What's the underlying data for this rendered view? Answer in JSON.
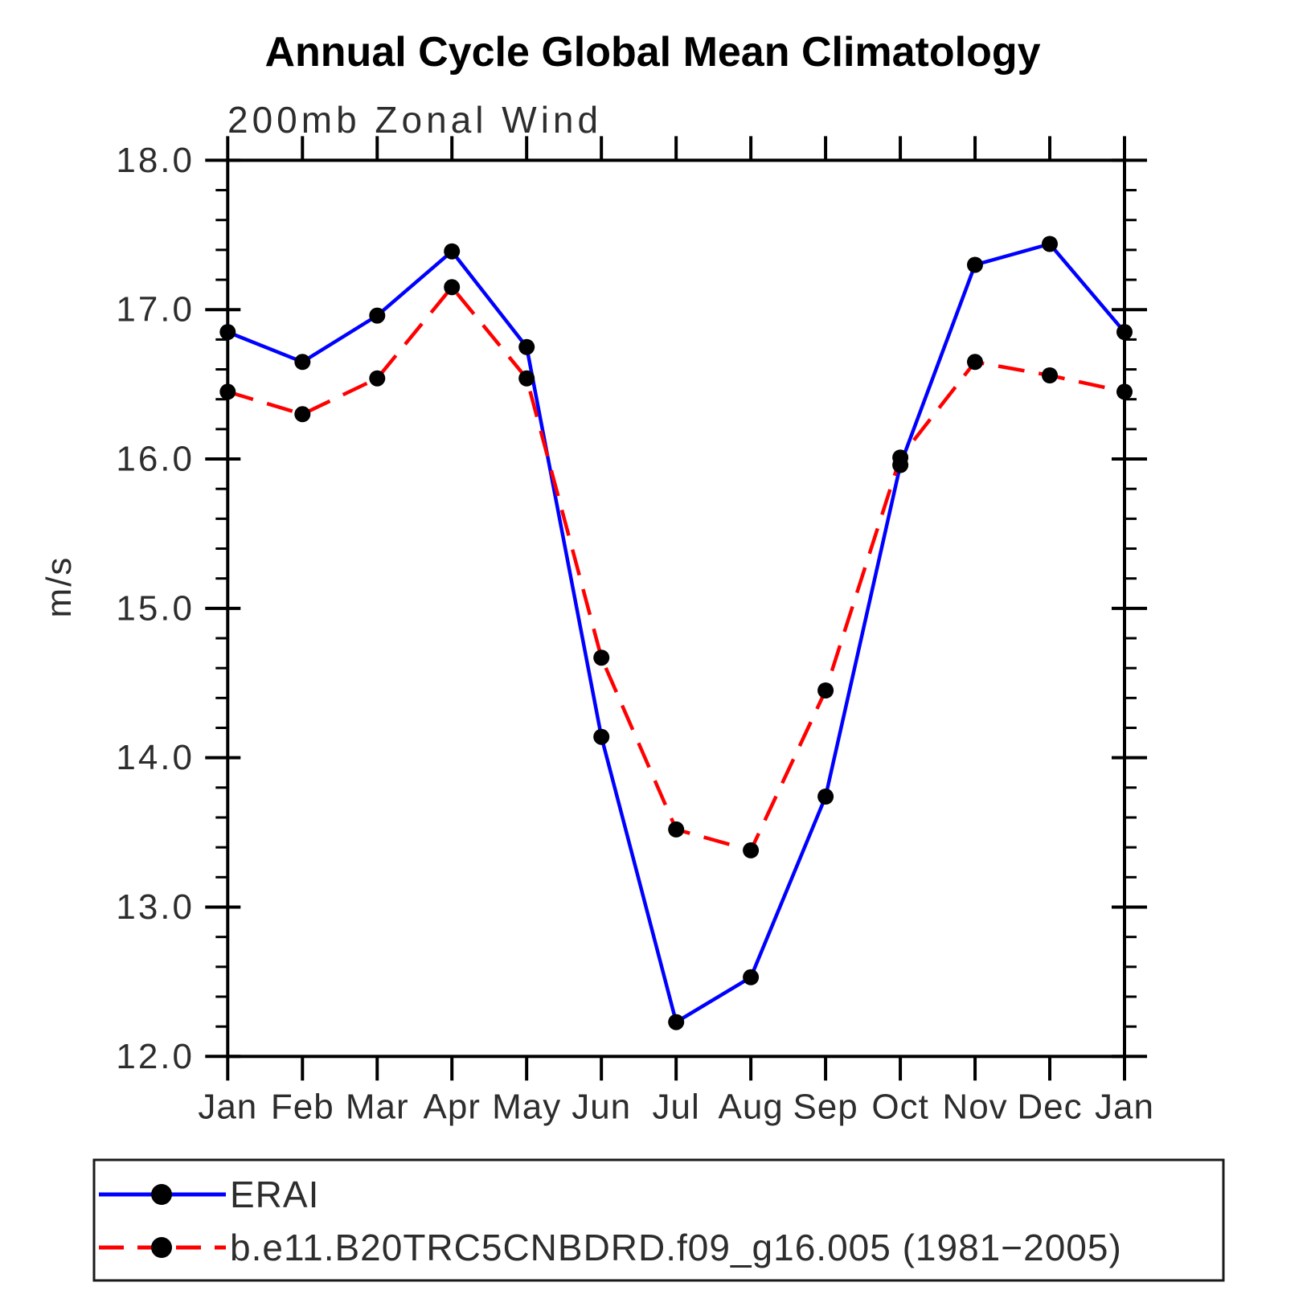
{
  "title": "Annual Cycle Global Mean Climatology",
  "subtitle": "200mb Zonal Wind",
  "chart_data": {
    "type": "line",
    "title": "Annual Cycle Global Mean Climatology",
    "subtitle": "200mb Zonal Wind",
    "xlabel": "",
    "ylabel": "m/s",
    "x_tick_labels": [
      "Jan",
      "Feb",
      "Mar",
      "Apr",
      "May",
      "Jun",
      "Jul",
      "Aug",
      "Sep",
      "Oct",
      "Nov",
      "Dec",
      "Jan"
    ],
    "y_ticks": [
      18.0,
      17.0,
      16.0,
      15.0,
      14.0,
      13.0,
      12.0
    ],
    "y_tick_labels": [
      "18.0",
      "17.0",
      "16.0",
      "15.0",
      "14.0",
      "13.0",
      "12.0"
    ],
    "ylim": [
      12.0,
      18.0
    ],
    "minor_tick_interval": 0.2,
    "grid": false,
    "legend_position": "bottom-left-box",
    "axis_color": "#000000",
    "marker_color": "#000000",
    "series": [
      {
        "name": "ERAI",
        "color": "#0000ff",
        "style": "solid",
        "marker": "circle",
        "values": [
          16.85,
          16.65,
          16.96,
          17.39,
          16.75,
          14.14,
          12.23,
          12.53,
          13.74,
          15.96,
          17.3,
          17.44,
          16.85
        ]
      },
      {
        "name": "b.e11.B20TRC5CNBDRD.f09_g16.005 (1981−2005)",
        "color": "#ff0000",
        "style": "dashed",
        "marker": "circle",
        "values": [
          16.45,
          16.3,
          16.54,
          17.15,
          16.54,
          14.67,
          13.52,
          13.38,
          14.45,
          16.01,
          16.65,
          16.56,
          16.45
        ]
      }
    ]
  }
}
